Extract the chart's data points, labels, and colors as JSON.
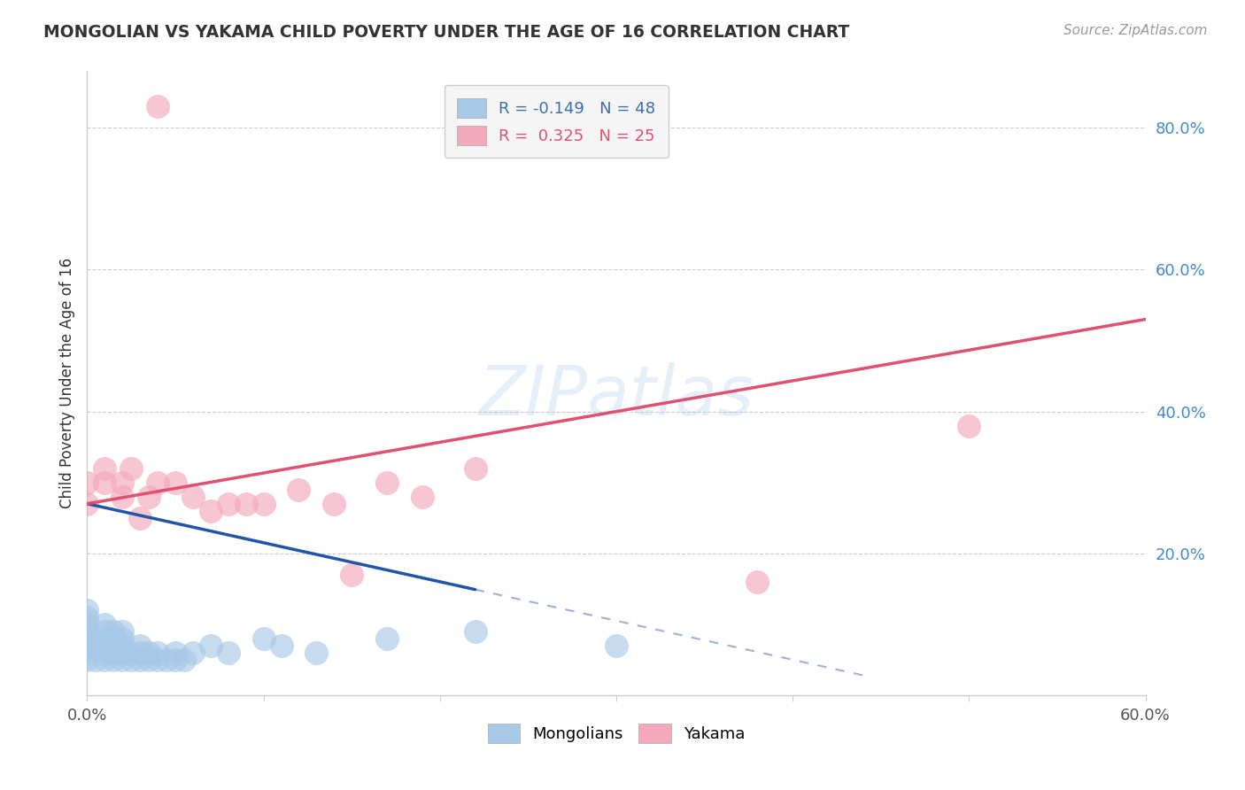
{
  "title": "MONGOLIAN VS YAKAMA CHILD POVERTY UNDER THE AGE OF 16 CORRELATION CHART",
  "source": "Source: ZipAtlas.com",
  "ylabel": "Child Poverty Under the Age of 16",
  "xlim": [
    0.0,
    0.6
  ],
  "ylim": [
    0.0,
    0.88
  ],
  "xticks": [
    0.0,
    0.1,
    0.2,
    0.3,
    0.4,
    0.5,
    0.6
  ],
  "xticklabels": [
    "0.0%",
    "",
    "",
    "",
    "",
    "",
    "60.0%"
  ],
  "yticks": [
    0.2,
    0.4,
    0.6,
    0.8
  ],
  "yticklabels": [
    "20.0%",
    "40.0%",
    "60.0%",
    "80.0%"
  ],
  "mongolian_R": -0.149,
  "mongolian_N": 48,
  "yakama_R": 0.325,
  "yakama_N": 25,
  "mongolian_color": "#a8c8e8",
  "mongolian_dark_color": "#3a6fa8",
  "yakama_color": "#f4a8bc",
  "yakama_dark_color": "#e05070",
  "mongolian_x": [
    0.0,
    0.0,
    0.0,
    0.0,
    0.0,
    0.0,
    0.0,
    0.0,
    0.005,
    0.005,
    0.01,
    0.01,
    0.01,
    0.01,
    0.01,
    0.01,
    0.015,
    0.015,
    0.015,
    0.015,
    0.015,
    0.02,
    0.02,
    0.02,
    0.02,
    0.02,
    0.025,
    0.025,
    0.03,
    0.03,
    0.03,
    0.035,
    0.035,
    0.04,
    0.04,
    0.045,
    0.05,
    0.05,
    0.055,
    0.06,
    0.07,
    0.08,
    0.1,
    0.11,
    0.13,
    0.17,
    0.22,
    0.3
  ],
  "mongolian_y": [
    0.05,
    0.06,
    0.07,
    0.08,
    0.09,
    0.1,
    0.11,
    0.12,
    0.05,
    0.07,
    0.05,
    0.06,
    0.07,
    0.08,
    0.09,
    0.1,
    0.05,
    0.06,
    0.07,
    0.08,
    0.09,
    0.05,
    0.06,
    0.07,
    0.08,
    0.09,
    0.05,
    0.06,
    0.05,
    0.06,
    0.07,
    0.05,
    0.06,
    0.05,
    0.06,
    0.05,
    0.05,
    0.06,
    0.05,
    0.06,
    0.07,
    0.06,
    0.08,
    0.07,
    0.06,
    0.08,
    0.09,
    0.07
  ],
  "yakama_x": [
    0.04,
    0.0,
    0.0,
    0.01,
    0.01,
    0.02,
    0.02,
    0.025,
    0.03,
    0.035,
    0.04,
    0.05,
    0.06,
    0.07,
    0.08,
    0.09,
    0.1,
    0.12,
    0.14,
    0.15,
    0.17,
    0.19,
    0.22,
    0.38,
    0.5
  ],
  "yakama_y": [
    0.83,
    0.27,
    0.3,
    0.3,
    0.32,
    0.28,
    0.3,
    0.32,
    0.25,
    0.28,
    0.3,
    0.3,
    0.28,
    0.26,
    0.27,
    0.27,
    0.27,
    0.29,
    0.27,
    0.17,
    0.3,
    0.28,
    0.32,
    0.16,
    0.38
  ],
  "watermark": "ZIPatlas",
  "legend_box_color": "#f5f5f5",
  "trend_mongolian_color": "#2255aa",
  "trend_yakama_color": "#e05070",
  "background_color": "#ffffff",
  "grid_color": "#cccccc",
  "trend_mongolian_start_y": 0.27,
  "trend_mongolian_slope": -0.55,
  "trend_yakama_start_y": 0.27,
  "trend_yakama_end_y": 0.53
}
